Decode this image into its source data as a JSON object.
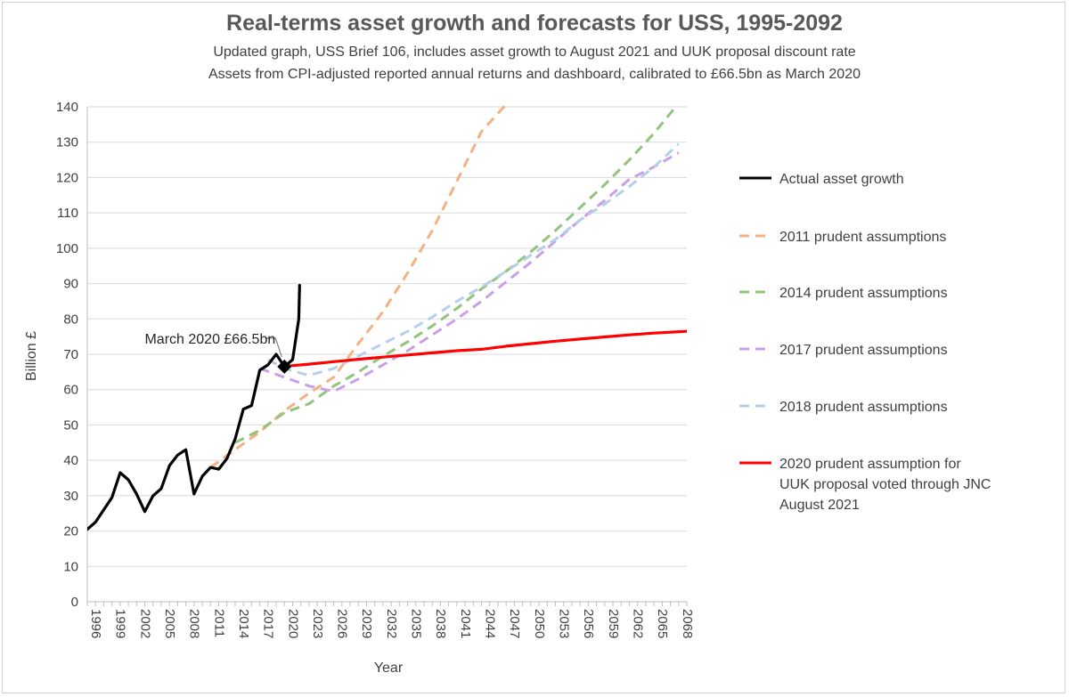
{
  "chart_data": {
    "type": "line",
    "title": "Real-terms asset growth and forecasts for USS, 1995-2092",
    "subtitle_lines": [
      "Updated graph, USS Brief 106, includes asset growth to August 2021 and UUK proposal discount rate",
      "Assets from CPI-adjusted reported annual returns and dashboard, calibrated to £66.5bn as March 2020"
    ],
    "xlabel": "Year",
    "ylabel": "Billion £",
    "xlim": [
      1996,
      2069
    ],
    "ylim": [
      0,
      140
    ],
    "yticks": [
      0,
      10,
      20,
      30,
      40,
      50,
      60,
      70,
      80,
      90,
      100,
      110,
      120,
      130,
      140
    ],
    "xtick_labels": [
      "1996",
      "1999",
      "2002",
      "2005",
      "2008",
      "2011",
      "2014",
      "2017",
      "2020",
      "2023",
      "2026",
      "2029",
      "2032",
      "2035",
      "2038",
      "2041",
      "2044",
      "2047",
      "2050",
      "2053",
      "2056",
      "2059",
      "2062",
      "2065",
      "2068"
    ],
    "grid": "horizontal",
    "legend_position": "right",
    "annotation": {
      "text": "March 2020 £66.5bn",
      "x": 2020,
      "y": 66.5
    },
    "series": [
      {
        "name": "Actual asset growth",
        "color": "#000000",
        "dash": "solid",
        "points": [
          [
            1996,
            20.5
          ],
          [
            1997,
            22.5
          ],
          [
            1998,
            26
          ],
          [
            1999,
            29.5
          ],
          [
            2000,
            36.5
          ],
          [
            2001,
            34.5
          ],
          [
            2002,
            30.5
          ],
          [
            2003,
            25.5
          ],
          [
            2004,
            30
          ],
          [
            2005,
            32
          ],
          [
            2006,
            38.5
          ],
          [
            2007,
            41.5
          ],
          [
            2008,
            43
          ],
          [
            2009,
            30.5
          ],
          [
            2010,
            35.5
          ],
          [
            2011,
            38
          ],
          [
            2012,
            37.5
          ],
          [
            2013,
            40.5
          ],
          [
            2014,
            46
          ],
          [
            2015,
            54.5
          ],
          [
            2016,
            55.5
          ],
          [
            2017,
            65.5
          ],
          [
            2018,
            67
          ],
          [
            2019,
            70
          ],
          [
            2020,
            66.5
          ],
          [
            2021,
            68.5
          ],
          [
            2021.75,
            80
          ],
          [
            2021.85,
            89.5
          ]
        ]
      },
      {
        "name": "2011 prudent assumptions",
        "color": "#f4b183",
        "dash": "dashed",
        "points": [
          [
            2011,
            38
          ],
          [
            2014,
            43
          ],
          [
            2017,
            48
          ],
          [
            2020,
            54
          ],
          [
            2023,
            59
          ],
          [
            2026,
            63.5
          ],
          [
            2029,
            73
          ],
          [
            2032,
            82
          ],
          [
            2035,
            93
          ],
          [
            2038,
            105
          ],
          [
            2041,
            119
          ],
          [
            2044,
            133
          ],
          [
            2047.5,
            142
          ]
        ]
      },
      {
        "name": "2014 prudent assumptions",
        "color": "#93c47d",
        "dash": "dashed",
        "points": [
          [
            2014,
            45
          ],
          [
            2017,
            48.5
          ],
          [
            2020,
            53.5
          ],
          [
            2023,
            56
          ],
          [
            2026,
            61
          ],
          [
            2029,
            65
          ],
          [
            2032,
            69.5
          ],
          [
            2035,
            73.5
          ],
          [
            2038,
            78
          ],
          [
            2041,
            83
          ],
          [
            2044,
            88.5
          ],
          [
            2047,
            93.5
          ],
          [
            2050,
            99
          ],
          [
            2053,
            105
          ],
          [
            2056,
            111.5
          ],
          [
            2059,
            118
          ],
          [
            2062,
            125
          ],
          [
            2065,
            132.5
          ],
          [
            2068,
            141
          ]
        ]
      },
      {
        "name": "2017 prudent assumptions",
        "color": "#c9a0e8",
        "dash": "dashed",
        "points": [
          [
            2017,
            66
          ],
          [
            2020,
            63.5
          ],
          [
            2023,
            61
          ],
          [
            2026,
            59.5
          ],
          [
            2029,
            63
          ],
          [
            2032,
            67
          ],
          [
            2035,
            71
          ],
          [
            2038,
            75.5
          ],
          [
            2041,
            80
          ],
          [
            2044,
            85
          ],
          [
            2047,
            90.5
          ],
          [
            2050,
            96
          ],
          [
            2053,
            102
          ],
          [
            2056,
            108
          ],
          [
            2059,
            113.5
          ],
          [
            2062,
            119.5
          ],
          [
            2065,
            123
          ],
          [
            2068,
            127
          ]
        ]
      },
      {
        "name": "2018 prudent assumptions",
        "color": "#b4cfe8",
        "dash": "dashed",
        "points": [
          [
            2018,
            68.5
          ],
          [
            2020,
            66
          ],
          [
            2023,
            64
          ],
          [
            2026,
            66
          ],
          [
            2029,
            69.5
          ],
          [
            2032,
            73
          ],
          [
            2035,
            76.5
          ],
          [
            2038,
            80.5
          ],
          [
            2041,
            85
          ],
          [
            2044,
            89
          ],
          [
            2047,
            93.5
          ],
          [
            2050,
            98
          ],
          [
            2053,
            102.5
          ],
          [
            2056,
            108
          ],
          [
            2059,
            112.5
          ],
          [
            2062,
            117.5
          ],
          [
            2065,
            123
          ],
          [
            2068,
            129.5
          ]
        ]
      },
      {
        "name": "2020 prudent assumption for UUK proposal voted through JNC August 2021",
        "legend_lines": [
          "2020 prudent assumption for",
          "UUK proposal voted through JNC",
          "August 2021"
        ],
        "color": "#ff0000",
        "dash": "solid",
        "points": [
          [
            2020,
            66.5
          ],
          [
            2021,
            66.8
          ],
          [
            2023,
            67.2
          ],
          [
            2026,
            67.9
          ],
          [
            2029,
            68.6
          ],
          [
            2032,
            69.2
          ],
          [
            2035,
            69.8
          ],
          [
            2038,
            70.4
          ],
          [
            2041,
            71
          ],
          [
            2044,
            71.4
          ],
          [
            2047,
            72.3
          ],
          [
            2050,
            73
          ],
          [
            2053,
            73.7
          ],
          [
            2056,
            74.3
          ],
          [
            2059,
            74.9
          ],
          [
            2062,
            75.5
          ],
          [
            2065,
            76
          ],
          [
            2069,
            76.5
          ]
        ]
      }
    ]
  }
}
